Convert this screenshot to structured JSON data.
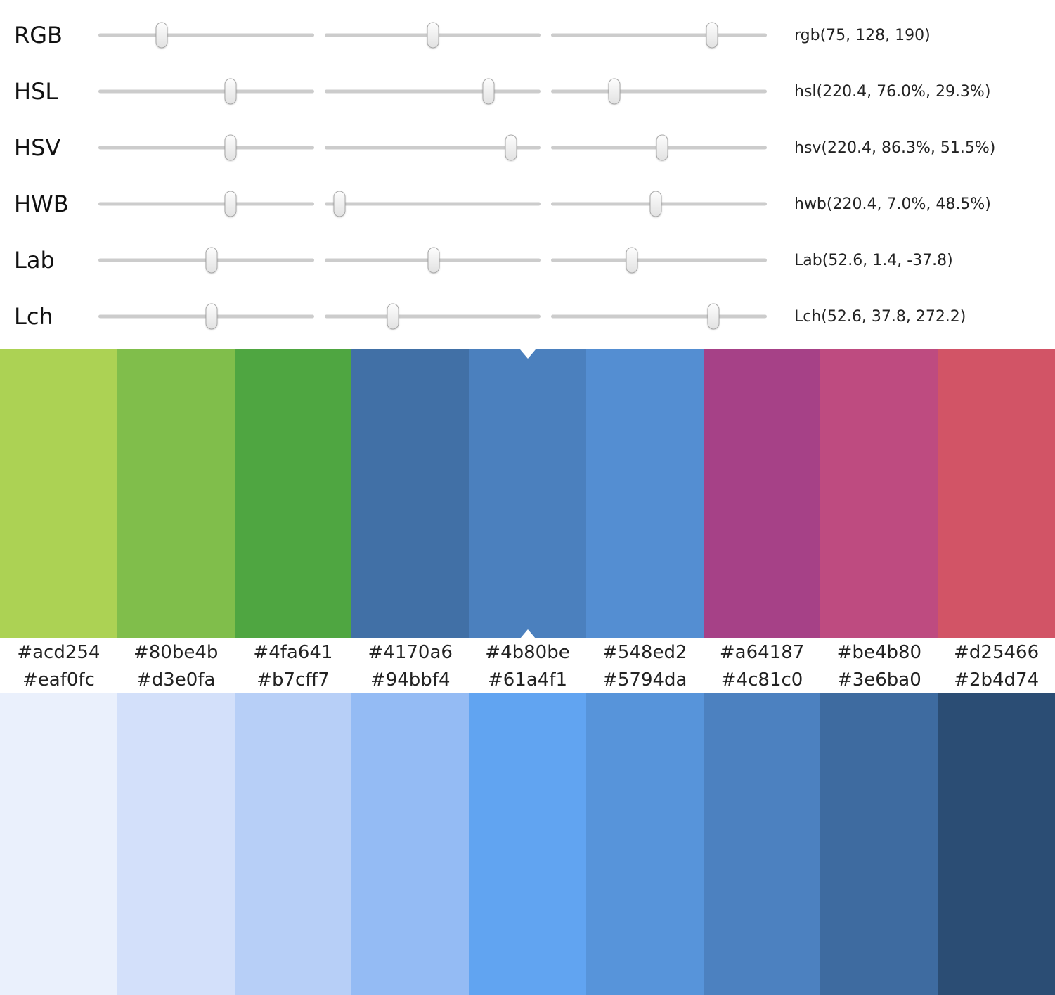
{
  "color_spaces": [
    {
      "name": "RGB",
      "value": "rgb(75, 128, 190)",
      "thumb_positions": [
        0.294,
        0.502,
        0.745
      ]
    },
    {
      "name": "HSL",
      "value": "hsl(220.4, 76.0%, 29.3%)",
      "thumb_positions": [
        0.612,
        0.76,
        0.293
      ]
    },
    {
      "name": "HSV",
      "value": "hsv(220.4, 86.3%, 51.5%)",
      "thumb_positions": [
        0.612,
        0.863,
        0.515
      ]
    },
    {
      "name": "HWB",
      "value": "hwb(220.4, 7.0%, 48.5%)",
      "thumb_positions": [
        0.612,
        0.07,
        0.485
      ]
    },
    {
      "name": "Lab",
      "value": "Lab(52.6, 1.4, -37.8)",
      "thumb_positions": [
        0.526,
        0.506,
        0.374
      ]
    },
    {
      "name": "Lch",
      "value": "Lch(52.6, 37.8, 272.2)",
      "thumb_positions": [
        0.526,
        0.315,
        0.752
      ]
    }
  ],
  "hue_palette": {
    "selected_index": 4,
    "colors": [
      "#acd254",
      "#80be4b",
      "#4fa641",
      "#4170a6",
      "#4b80be",
      "#548ed2",
      "#a64187",
      "#be4b80",
      "#d25466"
    ]
  },
  "shade_palette": {
    "colors": [
      "#eaf0fc",
      "#d3e0fa",
      "#b7cff7",
      "#94bbf4",
      "#61a4f1",
      "#5794da",
      "#4c81c0",
      "#3e6ba0",
      "#2b4d74"
    ]
  }
}
